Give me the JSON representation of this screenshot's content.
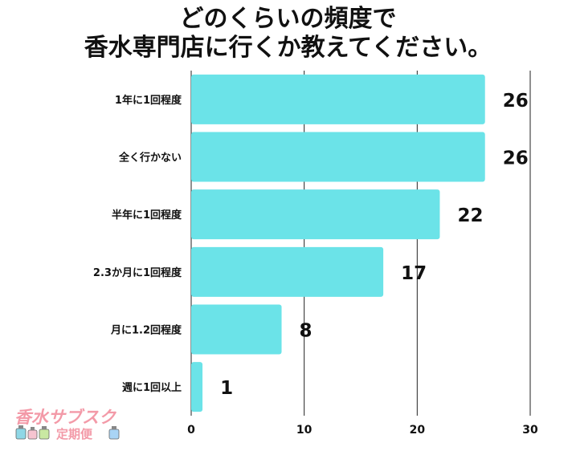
{
  "title": {
    "line1": "どのくらいの頻度で",
    "line2": "香水専門店に行くか教えてください。"
  },
  "logo": {
    "text_line1": "香水サブスク",
    "text_line2": "定期便"
  },
  "colors": {
    "bar": "#6be3e8",
    "grid": "#222222",
    "text": "#111111"
  },
  "chart_data": {
    "type": "bar",
    "orientation": "horizontal",
    "categories": [
      "1年に1回程度",
      "全く行かない",
      "半年に1回程度",
      "2.3か月に1回程度",
      "月に1.2回程度",
      "週に1回以上"
    ],
    "values": [
      26,
      26,
      22,
      17,
      8,
      1
    ],
    "xlim": [
      0,
      30
    ],
    "xticks": [
      0,
      10,
      20,
      30
    ],
    "grid": true,
    "data_labels": true
  }
}
